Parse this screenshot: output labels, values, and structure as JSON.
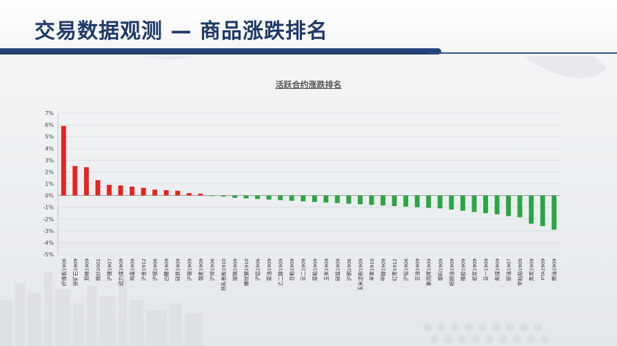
{
  "header": {
    "title": "交易数据观测 — 商品涨跌排名"
  },
  "chart_data": {
    "type": "bar",
    "title": "活跃合约涨跌排名",
    "xlabel": "",
    "ylabel": "",
    "ylim": [
      -5,
      7
    ],
    "y_ticks": [
      "7%",
      "6%",
      "5%",
      "4%",
      "3%",
      "2%",
      "1%",
      "0%",
      "-1%",
      "-2%",
      "-3%",
      "-4%",
      "-5%"
    ],
    "grid": true,
    "legend": "none",
    "colors": {
      "positive": "#e8231e",
      "negative": "#2aa642"
    },
    "categories": [
      "纤维板1906",
      "铁矿石1909",
      "郑棉1909",
      "棉纱2001",
      "沪镍1907",
      "动力煤1909",
      "鸡蛋1909",
      "沪金1912",
      "沪银1906",
      "白糖1909",
      "硅铁1909",
      "沪锡1909",
      "强麦1909",
      "沪锌1906",
      "热轧卷板1910",
      "玻璃1909",
      "螺纹钢1910",
      "沪铝1906",
      "菜油1909",
      "乙二醇1909",
      "豆粕1909",
      "豆二1909",
      "菜粕1909",
      "玉米1909",
      "硅锰1909",
      "沪铜1906",
      "玉米淀粉1909",
      "苹果1910",
      "甲醇1909",
      "红枣1912",
      "沪铅1906",
      "豆油1909",
      "聚丙烯1909",
      "塑料1909",
      "棕榈油1909",
      "橡胶1909",
      "纸浆1909",
      "豆一1909",
      "焦煤1909",
      "原油1907",
      "早籼稻1909",
      "焦炭1909",
      "PTA1909",
      "燃油1909"
    ],
    "values": [
      5.9,
      2.5,
      2.4,
      1.3,
      0.9,
      0.85,
      0.75,
      0.65,
      0.5,
      0.45,
      0.4,
      0.2,
      0.15,
      -0.05,
      -0.1,
      -0.2,
      -0.25,
      -0.3,
      -0.35,
      -0.4,
      -0.45,
      -0.5,
      -0.55,
      -0.6,
      -0.65,
      -0.7,
      -0.75,
      -0.8,
      -0.85,
      -0.9,
      -0.95,
      -1.0,
      -1.05,
      -1.1,
      -1.2,
      -1.3,
      -1.4,
      -1.5,
      -1.6,
      -1.75,
      -1.85,
      -2.4,
      -2.6,
      -2.9
    ]
  }
}
